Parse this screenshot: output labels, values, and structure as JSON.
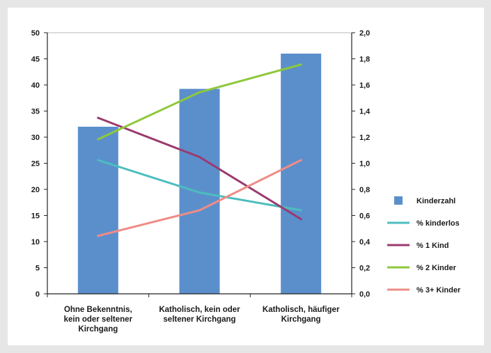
{
  "chart_data": {
    "type": "bar",
    "categories": [
      [
        "Ohne Bekenntnis,",
        "kein oder seltener",
        "Kirchgang"
      ],
      [
        "Katholisch, kein oder",
        "seltener Kirchgang"
      ],
      [
        "Katholisch, häufiger",
        "Kirchgang"
      ]
    ],
    "bar_series": {
      "name": "Kinderzahl",
      "axis": "right",
      "values": [
        1.28,
        1.57,
        1.84
      ],
      "color": "#5b8fcc"
    },
    "line_series": [
      {
        "name": "% kinderlos",
        "axis": "left",
        "values": [
          25.6,
          19.4,
          16.0
        ],
        "color": "#4dbdbe"
      },
      {
        "name": "% 1 Kind",
        "axis": "left",
        "values": [
          33.7,
          26.2,
          14.3
        ],
        "color": "#9b3a6e"
      },
      {
        "name": "% 2 Kinder",
        "axis": "left",
        "values": [
          29.6,
          38.6,
          43.9
        ],
        "color": "#8ec83a"
      },
      {
        "name": "% 3+ Kinder",
        "axis": "left",
        "values": [
          11.1,
          16.0,
          25.6
        ],
        "color": "#ef8c86"
      }
    ],
    "y_left": {
      "min": 0,
      "max": 50,
      "ticks": [
        "0",
        "5",
        "10",
        "15",
        "20",
        "25",
        "30",
        "35",
        "40",
        "45",
        "50"
      ]
    },
    "y_right": {
      "min": 0,
      "max": 2,
      "ticks": [
        "0,0",
        "0,2",
        "0,4",
        "0,6",
        "0,8",
        "1,0",
        "1,2",
        "1,4",
        "1,6",
        "1,8",
        "2,0"
      ]
    },
    "legend_position": "right",
    "grid": false
  }
}
